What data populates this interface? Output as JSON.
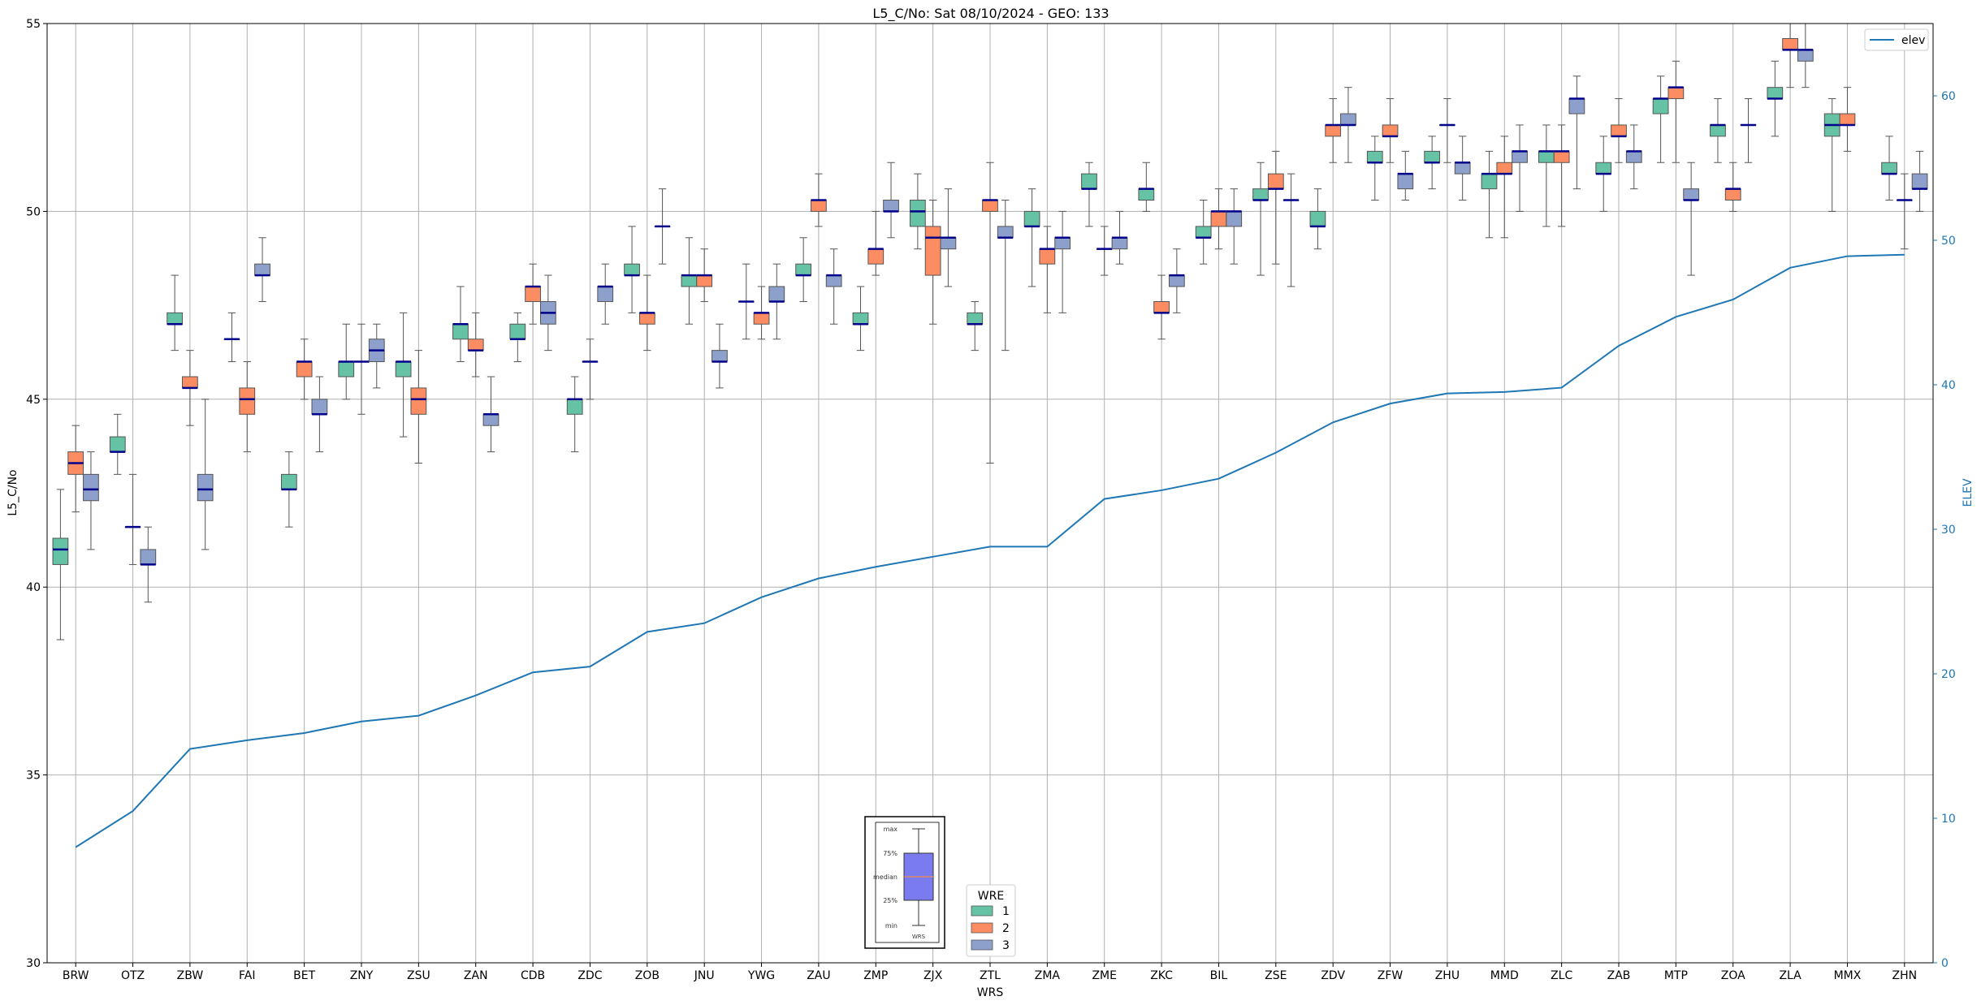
{
  "chart_data": {
    "type": "box",
    "title": "L5_C/No: Sat 08/10/2024 - GEO: 133",
    "xlabel": "WRS",
    "ylabel": "L5_C/No",
    "y2label": "ELEV",
    "ylim": [
      30,
      55
    ],
    "y2lim": [
      0,
      65
    ],
    "yticks": [
      30,
      35,
      40,
      45,
      50,
      55
    ],
    "y2ticks": [
      0,
      10,
      20,
      30,
      40,
      50,
      60
    ],
    "grid": true,
    "categories": [
      "BRW",
      "OTZ",
      "ZBW",
      "FAI",
      "BET",
      "ZNY",
      "ZSU",
      "ZAN",
      "CDB",
      "ZDC",
      "ZOB",
      "JNU",
      "YWG",
      "ZAU",
      "ZMP",
      "ZJX",
      "ZTL",
      "ZMA",
      "ZME",
      "ZKC",
      "BIL",
      "ZSE",
      "ZDV",
      "ZFW",
      "ZHU",
      "MMD",
      "ZLC",
      "ZAB",
      "MTP",
      "ZOA",
      "ZLA",
      "MMX",
      "ZHN"
    ],
    "wre_colors": {
      "1": "#66c2a5",
      "2": "#fc8d62",
      "3": "#8da0cb"
    },
    "elev_color": "#1f77b4",
    "median_color": "#00008b",
    "legend_wre": {
      "title": "WRE",
      "labels": [
        "1",
        "2",
        "3"
      ],
      "position": "bottom-center"
    },
    "legend_line": {
      "label": "elev",
      "position": "top-right"
    },
    "inset_legend": {
      "labels": [
        "max",
        "75%",
        "median",
        "25%",
        "min"
      ],
      "xlabel": "WRS",
      "box_color": "#7b7bf0"
    },
    "elev_series": {
      "name": "elev",
      "values": [
        8,
        10.5,
        14.8,
        15.4,
        15.9,
        16.7,
        17.1,
        18.5,
        20.1,
        20.5,
        22.9,
        23.5,
        25.3,
        26.6,
        27.4,
        28.1,
        28.8,
        28.8,
        32.1,
        32.7,
        33.5,
        35.3,
        37.4,
        38.7,
        39.4,
        39.5,
        39.8,
        42.7,
        44.7,
        45.9,
        48.1,
        48.9,
        49.0
      ]
    },
    "boxes": [
      {
        "wrs": "BRW",
        "wre": 1,
        "min": 38.6,
        "q1": 40.6,
        "median": 41.0,
        "q3": 41.3,
        "max": 42.6
      },
      {
        "wrs": "BRW",
        "wre": 2,
        "min": 42.0,
        "q1": 43.0,
        "median": 43.3,
        "q3": 43.6,
        "max": 44.3
      },
      {
        "wrs": "BRW",
        "wre": 3,
        "min": 41.0,
        "q1": 42.3,
        "median": 42.6,
        "q3": 43.0,
        "max": 43.6
      },
      {
        "wrs": "OTZ",
        "wre": 1,
        "min": 43.0,
        "q1": 43.6,
        "median": 43.6,
        "q3": 44.0,
        "max": 44.6
      },
      {
        "wrs": "OTZ",
        "wre": 2,
        "min": 40.6,
        "q1": 41.6,
        "median": 41.6,
        "q3": 41.6,
        "max": 43.0
      },
      {
        "wrs": "OTZ",
        "wre": 3,
        "min": 39.6,
        "q1": 40.6,
        "median": 40.6,
        "q3": 41.0,
        "max": 41.6
      },
      {
        "wrs": "ZBW",
        "wre": 1,
        "min": 46.3,
        "q1": 47.0,
        "median": 47.0,
        "q3": 47.3,
        "max": 48.3
      },
      {
        "wrs": "ZBW",
        "wre": 2,
        "min": 44.3,
        "q1": 45.3,
        "median": 45.3,
        "q3": 45.6,
        "max": 46.3
      },
      {
        "wrs": "ZBW",
        "wre": 3,
        "min": 41.0,
        "q1": 42.3,
        "median": 42.6,
        "q3": 43.0,
        "max": 45.0
      },
      {
        "wrs": "FAI",
        "wre": 1,
        "min": 46.0,
        "q1": 46.6,
        "median": 46.6,
        "q3": 46.6,
        "max": 47.3
      },
      {
        "wrs": "FAI",
        "wre": 2,
        "min": 43.6,
        "q1": 44.6,
        "median": 45.0,
        "q3": 45.3,
        "max": 46.0
      },
      {
        "wrs": "FAI",
        "wre": 3,
        "min": 47.6,
        "q1": 48.3,
        "median": 48.3,
        "q3": 48.6,
        "max": 49.3
      },
      {
        "wrs": "BET",
        "wre": 1,
        "min": 41.6,
        "q1": 42.6,
        "median": 42.6,
        "q3": 43.0,
        "max": 43.6
      },
      {
        "wrs": "BET",
        "wre": 2,
        "min": 45.0,
        "q1": 45.6,
        "median": 46.0,
        "q3": 46.0,
        "max": 46.6
      },
      {
        "wrs": "BET",
        "wre": 3,
        "min": 43.6,
        "q1": 44.6,
        "median": 44.6,
        "q3": 45.0,
        "max": 45.6
      },
      {
        "wrs": "ZNY",
        "wre": 1,
        "min": 45.0,
        "q1": 45.6,
        "median": 46.0,
        "q3": 46.0,
        "max": 47.0
      },
      {
        "wrs": "ZNY",
        "wre": 2,
        "min": 44.6,
        "q1": 46.0,
        "median": 46.0,
        "q3": 46.0,
        "max": 47.0
      },
      {
        "wrs": "ZNY",
        "wre": 3,
        "min": 45.3,
        "q1": 46.0,
        "median": 46.3,
        "q3": 46.6,
        "max": 47.0
      },
      {
        "wrs": "ZSU",
        "wre": 1,
        "min": 44.0,
        "q1": 45.6,
        "median": 46.0,
        "q3": 46.0,
        "max": 47.3
      },
      {
        "wrs": "ZSU",
        "wre": 2,
        "min": 43.3,
        "q1": 44.6,
        "median": 45.0,
        "q3": 45.3,
        "max": 46.3
      },
      {
        "wrs": "ZAN",
        "wre": 1,
        "min": 46.0,
        "q1": 46.6,
        "median": 47.0,
        "q3": 47.0,
        "max": 48.0
      },
      {
        "wrs": "ZAN",
        "wre": 2,
        "min": 45.6,
        "q1": 46.3,
        "median": 46.3,
        "q3": 46.6,
        "max": 47.3
      },
      {
        "wrs": "ZAN",
        "wre": 3,
        "min": 43.6,
        "q1": 44.3,
        "median": 44.6,
        "q3": 44.6,
        "max": 45.6
      },
      {
        "wrs": "CDB",
        "wre": 1,
        "min": 46.0,
        "q1": 46.6,
        "median": 46.6,
        "q3": 47.0,
        "max": 47.3
      },
      {
        "wrs": "CDB",
        "wre": 2,
        "min": 47.0,
        "q1": 47.6,
        "median": 48.0,
        "q3": 48.0,
        "max": 48.6
      },
      {
        "wrs": "CDB",
        "wre": 3,
        "min": 46.3,
        "q1": 47.0,
        "median": 47.3,
        "q3": 47.6,
        "max": 48.3
      },
      {
        "wrs": "ZDC",
        "wre": 1,
        "min": 43.6,
        "q1": 44.6,
        "median": 45.0,
        "q3": 45.0,
        "max": 45.6
      },
      {
        "wrs": "ZDC",
        "wre": 2,
        "min": 45.0,
        "q1": 46.0,
        "median": 46.0,
        "q3": 46.0,
        "max": 46.6
      },
      {
        "wrs": "ZDC",
        "wre": 3,
        "min": 47.0,
        "q1": 47.6,
        "median": 48.0,
        "q3": 48.0,
        "max": 48.6
      },
      {
        "wrs": "ZOB",
        "wre": 1,
        "min": 47.3,
        "q1": 48.3,
        "median": 48.3,
        "q3": 48.6,
        "max": 49.6
      },
      {
        "wrs": "ZOB",
        "wre": 2,
        "min": 46.3,
        "q1": 47.0,
        "median": 47.3,
        "q3": 47.3,
        "max": 48.3
      },
      {
        "wrs": "ZOB",
        "wre": 3,
        "min": 48.6,
        "q1": 49.6,
        "median": 49.6,
        "q3": 49.6,
        "max": 50.6
      },
      {
        "wrs": "JNU",
        "wre": 1,
        "min": 47.0,
        "q1": 48.0,
        "median": 48.3,
        "q3": 48.3,
        "max": 49.3
      },
      {
        "wrs": "JNU",
        "wre": 2,
        "min": 47.6,
        "q1": 48.0,
        "median": 48.3,
        "q3": 48.3,
        "max": 49.0
      },
      {
        "wrs": "JNU",
        "wre": 3,
        "min": 45.3,
        "q1": 46.0,
        "median": 46.0,
        "q3": 46.3,
        "max": 47.0
      },
      {
        "wrs": "YWG",
        "wre": 1,
        "min": 46.6,
        "q1": 47.6,
        "median": 47.6,
        "q3": 47.6,
        "max": 48.6
      },
      {
        "wrs": "YWG",
        "wre": 2,
        "min": 46.6,
        "q1": 47.0,
        "median": 47.3,
        "q3": 47.3,
        "max": 48.0
      },
      {
        "wrs": "YWG",
        "wre": 3,
        "min": 46.6,
        "q1": 47.6,
        "median": 47.6,
        "q3": 48.0,
        "max": 48.6
      },
      {
        "wrs": "ZAU",
        "wre": 1,
        "min": 47.6,
        "q1": 48.3,
        "median": 48.3,
        "q3": 48.6,
        "max": 49.3
      },
      {
        "wrs": "ZAU",
        "wre": 2,
        "min": 49.6,
        "q1": 50.0,
        "median": 50.3,
        "q3": 50.3,
        "max": 51.0
      },
      {
        "wrs": "ZAU",
        "wre": 3,
        "min": 47.0,
        "q1": 48.0,
        "median": 48.3,
        "q3": 48.3,
        "max": 49.0
      },
      {
        "wrs": "ZMP",
        "wre": 1,
        "min": 46.3,
        "q1": 47.0,
        "median": 47.0,
        "q3": 47.3,
        "max": 48.0
      },
      {
        "wrs": "ZMP",
        "wre": 2,
        "min": 48.3,
        "q1": 48.6,
        "median": 49.0,
        "q3": 49.0,
        "max": 50.0
      },
      {
        "wrs": "ZMP",
        "wre": 3,
        "min": 49.3,
        "q1": 50.0,
        "median": 50.0,
        "q3": 50.3,
        "max": 51.3
      },
      {
        "wrs": "ZJX",
        "wre": 1,
        "min": 49.0,
        "q1": 49.6,
        "median": 50.0,
        "q3": 50.3,
        "max": 51.0
      },
      {
        "wrs": "ZJX",
        "wre": 2,
        "min": 47.0,
        "q1": 48.3,
        "median": 49.3,
        "q3": 49.6,
        "max": 50.3
      },
      {
        "wrs": "ZJX",
        "wre": 3,
        "min": 48.0,
        "q1": 49.0,
        "median": 49.3,
        "q3": 49.3,
        "max": 50.6
      },
      {
        "wrs": "ZTL",
        "wre": 1,
        "min": 46.3,
        "q1": 47.0,
        "median": 47.0,
        "q3": 47.3,
        "max": 47.6
      },
      {
        "wrs": "ZTL",
        "wre": 2,
        "min": 43.3,
        "q1": 50.0,
        "median": 50.3,
        "q3": 50.3,
        "max": 51.3
      },
      {
        "wrs": "ZTL",
        "wre": 3,
        "min": 46.3,
        "q1": 49.3,
        "median": 49.3,
        "q3": 49.6,
        "max": 50.3
      },
      {
        "wrs": "ZMA",
        "wre": 1,
        "min": 48.0,
        "q1": 49.6,
        "median": 49.6,
        "q3": 50.0,
        "max": 50.6
      },
      {
        "wrs": "ZMA",
        "wre": 2,
        "min": 47.3,
        "q1": 48.6,
        "median": 49.0,
        "q3": 49.0,
        "max": 49.6
      },
      {
        "wrs": "ZMA",
        "wre": 3,
        "min": 47.3,
        "q1": 49.0,
        "median": 49.3,
        "q3": 49.3,
        "max": 50.0
      },
      {
        "wrs": "ZME",
        "wre": 1,
        "min": 49.6,
        "q1": 50.6,
        "median": 50.6,
        "q3": 51.0,
        "max": 51.3
      },
      {
        "wrs": "ZME",
        "wre": 2,
        "min": 48.3,
        "q1": 49.0,
        "median": 49.0,
        "q3": 49.0,
        "max": 49.6
      },
      {
        "wrs": "ZME",
        "wre": 3,
        "min": 48.6,
        "q1": 49.0,
        "median": 49.3,
        "q3": 49.3,
        "max": 50.0
      },
      {
        "wrs": "ZKC",
        "wre": 1,
        "min": 50.0,
        "q1": 50.3,
        "median": 50.6,
        "q3": 50.6,
        "max": 51.3
      },
      {
        "wrs": "ZKC",
        "wre": 2,
        "min": 46.6,
        "q1": 47.3,
        "median": 47.3,
        "q3": 47.6,
        "max": 48.3
      },
      {
        "wrs": "ZKC",
        "wre": 3,
        "min": 47.3,
        "q1": 48.0,
        "median": 48.3,
        "q3": 48.3,
        "max": 49.0
      },
      {
        "wrs": "BIL",
        "wre": 1,
        "min": 48.6,
        "q1": 49.3,
        "median": 49.3,
        "q3": 49.6,
        "max": 50.3
      },
      {
        "wrs": "BIL",
        "wre": 2,
        "min": 49.0,
        "q1": 49.6,
        "median": 50.0,
        "q3": 50.0,
        "max": 50.6
      },
      {
        "wrs": "BIL",
        "wre": 3,
        "min": 48.6,
        "q1": 49.6,
        "median": 50.0,
        "q3": 50.0,
        "max": 50.6
      },
      {
        "wrs": "ZSE",
        "wre": 1,
        "min": 48.3,
        "q1": 50.3,
        "median": 50.3,
        "q3": 50.6,
        "max": 51.3
      },
      {
        "wrs": "ZSE",
        "wre": 2,
        "min": 48.6,
        "q1": 50.6,
        "median": 50.6,
        "q3": 51.0,
        "max": 51.6
      },
      {
        "wrs": "ZSE",
        "wre": 3,
        "min": 48.0,
        "q1": 50.3,
        "median": 50.3,
        "q3": 50.3,
        "max": 51.0
      },
      {
        "wrs": "ZDV",
        "wre": 1,
        "min": 49.0,
        "q1": 49.6,
        "median": 49.6,
        "q3": 50.0,
        "max": 50.6
      },
      {
        "wrs": "ZDV",
        "wre": 2,
        "min": 51.3,
        "q1": 52.0,
        "median": 52.3,
        "q3": 52.3,
        "max": 53.0
      },
      {
        "wrs": "ZDV",
        "wre": 3,
        "min": 51.3,
        "q1": 52.3,
        "median": 52.3,
        "q3": 52.6,
        "max": 53.3
      },
      {
        "wrs": "ZFW",
        "wre": 1,
        "min": 50.3,
        "q1": 51.3,
        "median": 51.3,
        "q3": 51.6,
        "max": 52.0
      },
      {
        "wrs": "ZFW",
        "wre": 2,
        "min": 51.3,
        "q1": 52.0,
        "median": 52.0,
        "q3": 52.3,
        "max": 53.0
      },
      {
        "wrs": "ZFW",
        "wre": 3,
        "min": 50.3,
        "q1": 50.6,
        "median": 51.0,
        "q3": 51.0,
        "max": 51.6
      },
      {
        "wrs": "ZHU",
        "wre": 1,
        "min": 50.6,
        "q1": 51.3,
        "median": 51.3,
        "q3": 51.6,
        "max": 52.0
      },
      {
        "wrs": "ZHU",
        "wre": 2,
        "min": 51.3,
        "q1": 52.3,
        "median": 52.3,
        "q3": 52.3,
        "max": 53.0
      },
      {
        "wrs": "ZHU",
        "wre": 3,
        "min": 50.3,
        "q1": 51.0,
        "median": 51.3,
        "q3": 51.3,
        "max": 52.0
      },
      {
        "wrs": "MMD",
        "wre": 1,
        "min": 49.3,
        "q1": 50.6,
        "median": 51.0,
        "q3": 51.0,
        "max": 51.6
      },
      {
        "wrs": "MMD",
        "wre": 2,
        "min": 49.3,
        "q1": 51.0,
        "median": 51.0,
        "q3": 51.3,
        "max": 52.0
      },
      {
        "wrs": "MMD",
        "wre": 3,
        "min": 50.0,
        "q1": 51.3,
        "median": 51.6,
        "q3": 51.6,
        "max": 52.3
      },
      {
        "wrs": "ZLC",
        "wre": 1,
        "min": 49.6,
        "q1": 51.3,
        "median": 51.6,
        "q3": 51.6,
        "max": 52.3
      },
      {
        "wrs": "ZLC",
        "wre": 2,
        "min": 49.6,
        "q1": 51.3,
        "median": 51.6,
        "q3": 51.6,
        "max": 52.3
      },
      {
        "wrs": "ZLC",
        "wre": 3,
        "min": 50.6,
        "q1": 52.6,
        "median": 53.0,
        "q3": 53.0,
        "max": 53.6
      },
      {
        "wrs": "ZAB",
        "wre": 1,
        "min": 50.0,
        "q1": 51.0,
        "median": 51.0,
        "q3": 51.3,
        "max": 52.0
      },
      {
        "wrs": "ZAB",
        "wre": 2,
        "min": 51.3,
        "q1": 52.0,
        "median": 52.0,
        "q3": 52.3,
        "max": 53.0
      },
      {
        "wrs": "ZAB",
        "wre": 3,
        "min": 50.6,
        "q1": 51.3,
        "median": 51.6,
        "q3": 51.6,
        "max": 52.3
      },
      {
        "wrs": "MTP",
        "wre": 1,
        "min": 51.3,
        "q1": 52.6,
        "median": 53.0,
        "q3": 53.0,
        "max": 53.6
      },
      {
        "wrs": "MTP",
        "wre": 2,
        "min": 51.3,
        "q1": 53.0,
        "median": 53.3,
        "q3": 53.3,
        "max": 54.0
      },
      {
        "wrs": "MTP",
        "wre": 3,
        "min": 48.3,
        "q1": 50.3,
        "median": 50.3,
        "q3": 50.6,
        "max": 51.3
      },
      {
        "wrs": "ZOA",
        "wre": 1,
        "min": 51.3,
        "q1": 52.0,
        "median": 52.3,
        "q3": 52.3,
        "max": 53.0
      },
      {
        "wrs": "ZOA",
        "wre": 2,
        "min": 50.0,
        "q1": 50.3,
        "median": 50.6,
        "q3": 50.6,
        "max": 51.3
      },
      {
        "wrs": "ZOA",
        "wre": 3,
        "min": 51.3,
        "q1": 52.3,
        "median": 52.3,
        "q3": 52.3,
        "max": 53.0
      },
      {
        "wrs": "ZLA",
        "wre": 1,
        "min": 52.0,
        "q1": 53.0,
        "median": 53.0,
        "q3": 53.3,
        "max": 54.0
      },
      {
        "wrs": "ZLA",
        "wre": 2,
        "min": 53.3,
        "q1": 54.3,
        "median": 54.3,
        "q3": 54.6,
        "max": 55.0
      },
      {
        "wrs": "ZLA",
        "wre": 3,
        "min": 53.3,
        "q1": 54.0,
        "median": 54.3,
        "q3": 54.3,
        "max": 55.0
      },
      {
        "wrs": "MMX",
        "wre": 1,
        "min": 50.0,
        "q1": 52.0,
        "median": 52.3,
        "q3": 52.6,
        "max": 53.0
      },
      {
        "wrs": "MMX",
        "wre": 2,
        "min": 51.6,
        "q1": 52.3,
        "median": 52.3,
        "q3": 52.6,
        "max": 53.3
      },
      {
        "wrs": "ZHN",
        "wre": 1,
        "min": 50.3,
        "q1": 51.0,
        "median": 51.0,
        "q3": 51.3,
        "max": 52.0
      },
      {
        "wrs": "ZHN",
        "wre": 2,
        "min": 49.0,
        "q1": 50.3,
        "median": 50.3,
        "q3": 50.3,
        "max": 51.0
      },
      {
        "wrs": "ZHN",
        "wre": 3,
        "min": 50.0,
        "q1": 50.6,
        "median": 50.6,
        "q3": 51.0,
        "max": 51.6
      }
    ]
  }
}
